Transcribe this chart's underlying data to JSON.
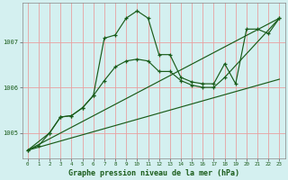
{
  "title": "Graphe pression niveau de la mer (hPa)",
  "background_color": "#d4f0f0",
  "grid_color": "#e8a0a0",
  "line_color": "#1a5c1a",
  "xlim": [
    -0.5,
    23.5
  ],
  "ylim": [
    1004.45,
    1007.85
  ],
  "yticks": [
    1005,
    1006,
    1007
  ],
  "xticks": [
    0,
    1,
    2,
    3,
    4,
    5,
    6,
    7,
    8,
    9,
    10,
    11,
    12,
    13,
    14,
    15,
    16,
    17,
    18,
    19,
    20,
    21,
    22,
    23
  ],
  "series1_x": [
    0,
    1,
    2,
    3,
    4,
    5,
    6,
    7,
    8,
    9,
    10,
    11,
    12,
    13,
    14,
    15,
    16,
    17,
    18,
    19,
    20,
    21,
    22,
    23
  ],
  "series1_y": [
    1004.62,
    1004.72,
    1005.0,
    1005.35,
    1005.38,
    1005.55,
    1005.82,
    1007.08,
    1007.15,
    1007.52,
    1007.68,
    1007.52,
    1006.72,
    1006.72,
    1006.22,
    1006.12,
    1006.08,
    1006.08,
    1006.52,
    1006.08,
    1007.28,
    1007.28,
    1007.18,
    1007.52
  ],
  "series2_x": [
    0,
    2,
    3,
    4,
    5,
    6,
    7,
    8,
    9,
    10,
    11,
    12,
    13,
    14,
    15,
    16,
    17,
    18,
    23
  ],
  "series2_y": [
    1004.62,
    1005.0,
    1005.35,
    1005.38,
    1005.55,
    1005.82,
    1006.15,
    1006.45,
    1006.58,
    1006.62,
    1006.58,
    1006.35,
    1006.35,
    1006.15,
    1006.05,
    1006.0,
    1006.0,
    1006.22,
    1007.52
  ],
  "series3_x": [
    0,
    23
  ],
  "series3_y": [
    1004.62,
    1007.52
  ],
  "series4_x": [
    0,
    23
  ],
  "series4_y": [
    1004.62,
    1006.18
  ]
}
